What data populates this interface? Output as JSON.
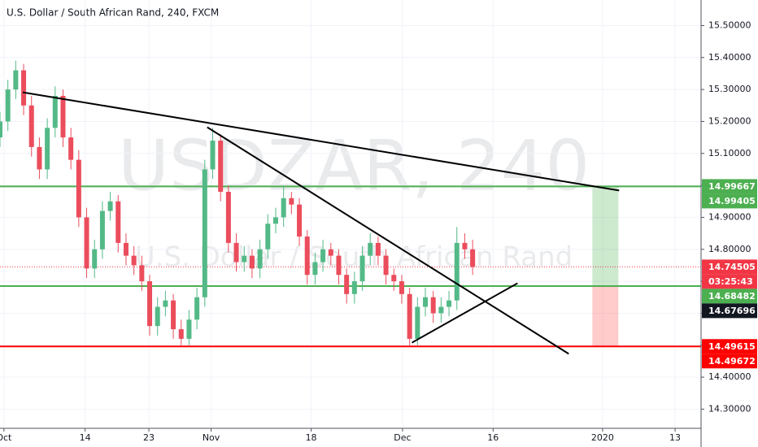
{
  "chart_data": {
    "type": "candlestick",
    "title": "U.S. Dollar / South African Rand, 240, FXCM",
    "watermark": "USDZAR, 240",
    "watermark_subtitle": "U.S. Dollar / South African Rand",
    "up_color": "#53b987",
    "down_color": "#eb4d5c",
    "xlim": [
      0,
      89
    ],
    "ylim": [
      14.24,
      15.58
    ],
    "xticks": [
      {
        "value": 0.5,
        "label": "Oct"
      },
      {
        "value": 10.8,
        "label": "14"
      },
      {
        "value": 18.9,
        "label": "23"
      },
      {
        "value": 26.8,
        "label": "Nov"
      },
      {
        "value": 39.5,
        "label": "18"
      },
      {
        "value": 51.1,
        "label": "Dec"
      },
      {
        "value": 62.6,
        "label": "16"
      },
      {
        "value": 76.5,
        "label": "2020"
      },
      {
        "value": 85.7,
        "label": "13"
      }
    ],
    "yticks": [
      {
        "value": 15.5,
        "label": "15.50000"
      },
      {
        "value": 15.4,
        "label": "15.40000"
      },
      {
        "value": 15.3,
        "label": "15.30000"
      },
      {
        "value": 15.2,
        "label": "15.20000"
      },
      {
        "value": 15.1,
        "label": "15.10000"
      },
      {
        "value": 15.0,
        "label": "15.00000"
      },
      {
        "value": 14.9,
        "label": "14.90000"
      },
      {
        "value": 14.8,
        "label": "14.80000"
      },
      {
        "value": 14.7,
        "label": "14.70000"
      },
      {
        "value": 14.6,
        "label": "14.60000"
      },
      {
        "value": 14.5,
        "label": "14.50000"
      },
      {
        "value": 14.4,
        "label": "14.40000"
      },
      {
        "value": 14.3,
        "label": "14.30000"
      }
    ],
    "candles": [
      [
        15.15,
        15.23,
        15.12,
        15.2
      ],
      [
        15.2,
        15.33,
        15.17,
        15.3
      ],
      [
        15.3,
        15.39,
        15.27,
        15.36
      ],
      [
        15.36,
        15.38,
        15.22,
        15.25
      ],
      [
        15.25,
        15.28,
        15.09,
        15.12
      ],
      [
        15.12,
        15.15,
        15.02,
        15.05
      ],
      [
        15.05,
        15.21,
        15.02,
        15.18
      ],
      [
        15.18,
        15.31,
        15.15,
        15.28
      ],
      [
        15.28,
        15.3,
        15.12,
        15.15
      ],
      [
        15.15,
        15.18,
        15.05,
        15.08
      ],
      [
        15.08,
        15.11,
        14.87,
        14.9
      ],
      [
        14.9,
        14.93,
        14.71,
        14.74
      ],
      [
        14.74,
        14.83,
        14.71,
        14.8
      ],
      [
        14.8,
        14.95,
        14.77,
        14.92
      ],
      [
        14.92,
        14.98,
        14.89,
        14.95
      ],
      [
        14.95,
        14.97,
        14.79,
        14.82
      ],
      [
        14.82,
        14.85,
        14.75,
        14.78
      ],
      [
        14.78,
        14.81,
        14.72,
        14.75
      ],
      [
        14.75,
        14.78,
        14.67,
        14.7
      ],
      [
        14.7,
        14.72,
        14.53,
        14.56
      ],
      [
        14.56,
        14.65,
        14.53,
        14.62
      ],
      [
        14.62,
        14.67,
        14.59,
        14.64
      ],
      [
        14.64,
        14.66,
        14.52,
        14.55
      ],
      [
        14.55,
        14.58,
        14.5,
        14.52
      ],
      [
        14.52,
        14.61,
        14.5,
        14.58
      ],
      [
        14.58,
        14.68,
        14.55,
        14.65
      ],
      [
        14.65,
        15.08,
        14.62,
        15.05
      ],
      [
        15.05,
        15.18,
        15.02,
        15.14
      ],
      [
        15.14,
        15.16,
        14.95,
        14.98
      ],
      [
        14.98,
        15.0,
        14.79,
        14.82
      ],
      [
        14.82,
        14.85,
        14.73,
        14.76
      ],
      [
        14.76,
        14.81,
        14.73,
        14.78
      ],
      [
        14.78,
        14.8,
        14.71,
        14.74
      ],
      [
        14.74,
        14.83,
        14.71,
        14.8
      ],
      [
        14.8,
        14.91,
        14.77,
        14.88
      ],
      [
        14.88,
        14.93,
        14.85,
        14.9
      ],
      [
        14.9,
        15.0,
        14.87,
        14.96
      ],
      [
        14.96,
        14.98,
        14.91,
        14.94
      ],
      [
        14.94,
        14.96,
        14.81,
        14.84
      ],
      [
        14.84,
        14.86,
        14.69,
        14.72
      ],
      [
        14.72,
        14.79,
        14.69,
        14.76
      ],
      [
        14.76,
        14.83,
        14.73,
        14.8
      ],
      [
        14.8,
        14.82,
        14.75,
        14.78
      ],
      [
        14.78,
        14.8,
        14.69,
        14.72
      ],
      [
        14.72,
        14.74,
        14.63,
        14.66
      ],
      [
        14.66,
        14.73,
        14.63,
        14.7
      ],
      [
        14.7,
        14.81,
        14.67,
        14.78
      ],
      [
        14.78,
        14.85,
        14.75,
        14.82
      ],
      [
        14.82,
        14.84,
        14.75,
        14.78
      ],
      [
        14.78,
        14.8,
        14.69,
        14.72
      ],
      [
        14.72,
        14.74,
        14.67,
        14.7
      ],
      [
        14.7,
        14.72,
        14.63,
        14.66
      ],
      [
        14.66,
        14.68,
        14.5,
        14.52
      ],
      [
        14.52,
        14.65,
        14.5,
        14.62
      ],
      [
        14.62,
        14.68,
        14.59,
        14.65
      ],
      [
        14.65,
        14.67,
        14.57,
        14.6
      ],
      [
        14.6,
        14.65,
        14.57,
        14.62
      ],
      [
        14.62,
        14.67,
        14.59,
        14.64
      ],
      [
        14.64,
        14.87,
        14.61,
        14.82
      ],
      [
        14.82,
        14.85,
        14.77,
        14.8
      ],
      [
        14.8,
        14.83,
        14.72,
        14.745
      ]
    ],
    "last_price": 14.74505,
    "countdown": "03:25:43",
    "horizontal_lines": [
      {
        "value": 14.99667,
        "color": "#4caf50"
      },
      {
        "value": 14.68482,
        "color": "#4caf50"
      },
      {
        "value": 14.49615,
        "color": "#ff0000"
      }
    ],
    "trend_lines": [
      {
        "x": [
          2.9,
          78.6
        ],
        "y": [
          15.291,
          14.984
        ]
      },
      {
        "x": [
          26.3,
          72.2
        ],
        "y": [
          15.182,
          14.473
        ]
      },
      {
        "x": [
          52.3,
          65.7
        ],
        "y": [
          14.508,
          14.694
        ]
      }
    ],
    "position": {
      "x": [
        75.2,
        78.5
      ],
      "entry": 14.68482,
      "target": 14.99667,
      "stop": 14.49615
    },
    "price_labels": [
      {
        "value": 14.99667,
        "color": "#4caf50"
      },
      {
        "value": 14.99405,
        "color": "#4caf50"
      },
      {
        "value": 14.74505,
        "color": "#f23645"
      },
      {
        "value": 14.68482,
        "color": "#4caf50"
      },
      {
        "value": 14.67696,
        "color": "#131722"
      },
      {
        "value": 14.49615,
        "color": "#ff0000"
      },
      {
        "value": 14.49672,
        "color": "#ff0000"
      }
    ]
  }
}
